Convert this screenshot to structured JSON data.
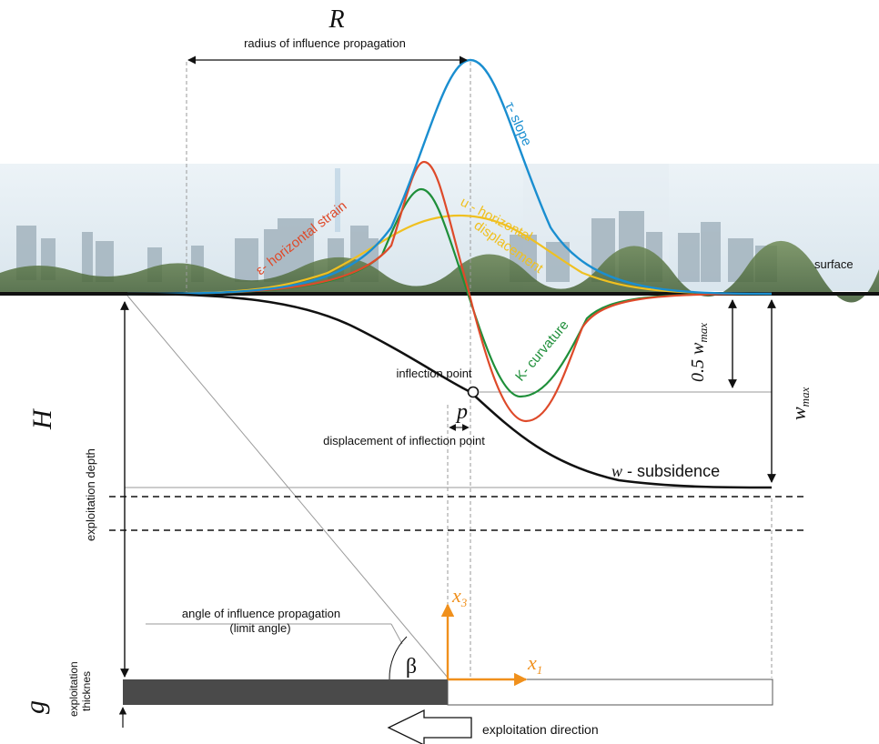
{
  "labels": {
    "R": "R",
    "radius": "radius of influence propagation",
    "tau_slope": "τ- slope",
    "u_horizontal": "u - horizontal",
    "u_displacement": "displacement",
    "eps_strain": "ε- horizontal strain",
    "k_curvature": "K- curvature",
    "surface": "surface",
    "half_wmax": "0.5 w",
    "wmax": "w",
    "max_sub": "max",
    "inflection_point": "inflection point",
    "p": "p",
    "displacement_inflection": "displacement of inflection point",
    "H": "H",
    "exploitation_depth": "exploitation depth",
    "w_subsidence_w": "w",
    "w_subsidence_text": " - subsidence",
    "angle_influence": "angle of influence propagation",
    "limit_angle": "(limit angle)",
    "beta": "β",
    "x3": "x",
    "x3_sub": "3",
    "x1": "x",
    "x1_sub": "1",
    "g": "g",
    "exploitation_thicknes_1": "exploitation",
    "exploitation_thicknes_2": "thicknes",
    "exploitation_direction": "exploitation direction"
  },
  "colors": {
    "slope": "#1a8ed0",
    "strain": "#de4a2a",
    "curvature": "#1f8f3a",
    "displacement": "#f0c020",
    "subsidence": "#111111",
    "axis_arrow": "#f0901c",
    "seam": "#4a4a4a"
  }
}
